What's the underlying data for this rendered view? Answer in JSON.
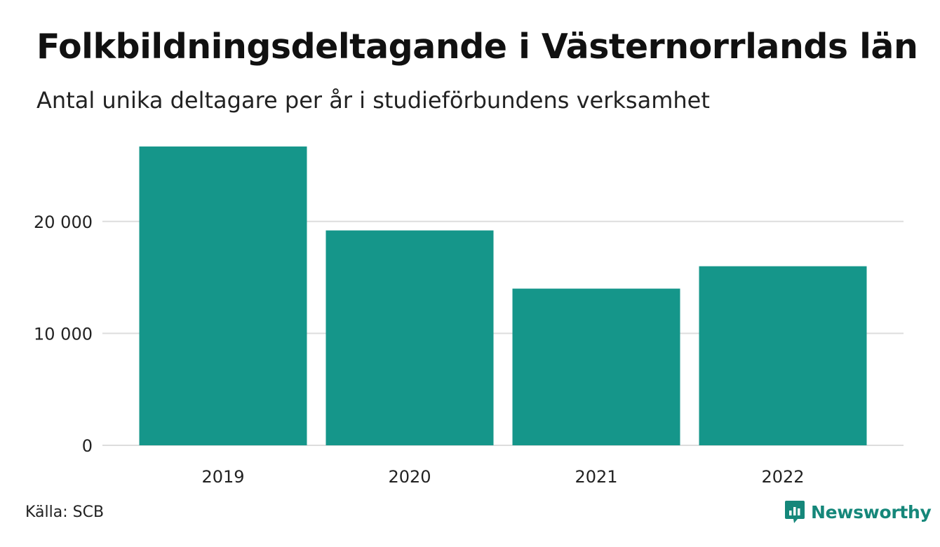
{
  "title": "Folkbildningsdeltagande i Västernorrlands län",
  "subtitle": "Antal unika deltagare per år i studieförbundens verksamhet",
  "source": "Källa: SCB",
  "brand": {
    "name": "Newsworthy",
    "icon": "newsworthy-logo-icon",
    "color": "#15877a"
  },
  "chart_data": {
    "type": "bar",
    "categories": [
      "2019",
      "2020",
      "2021",
      "2022"
    ],
    "values": [
      26700,
      19200,
      14000,
      16000
    ],
    "ylim": [
      0,
      28000
    ],
    "yticks": [
      0,
      10000,
      20000
    ],
    "ytick_labels": [
      "0",
      "10 000",
      "20 000"
    ],
    "grid": true,
    "bar_color": "#15968a",
    "xlabel": "",
    "ylabel": ""
  }
}
